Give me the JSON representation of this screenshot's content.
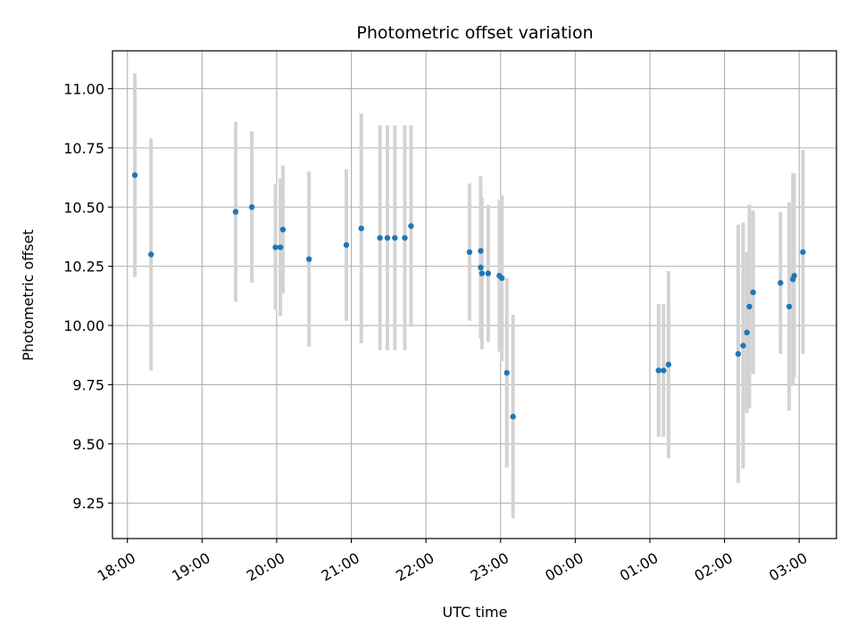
{
  "chart_data": {
    "type": "scatter",
    "title": "Photometric offset variation",
    "xlabel": "UTC time",
    "ylabel": "Photometric offset",
    "grid": true,
    "x_axis": {
      "unit": "UTC time of day",
      "range": [
        "17:48",
        "03:30"
      ],
      "ticks": [
        "18:00",
        "19:00",
        "20:00",
        "21:00",
        "22:00",
        "23:00",
        "00:00",
        "01:00",
        "02:00",
        "03:00"
      ]
    },
    "y_axis": {
      "range": [
        9.1,
        11.16
      ],
      "ticks": [
        "9.25",
        "9.50",
        "9.75",
        "10.00",
        "10.25",
        "10.50",
        "10.75",
        "11.00"
      ]
    },
    "colors": {
      "point": "#1f77b4",
      "errorbar": "#d3d3d3",
      "grid": "#b0b0b0"
    },
    "series": [
      {
        "points": [
          {
            "t": "18:06",
            "y": 10.635,
            "err": 0.43
          },
          {
            "t": "18:19",
            "y": 10.3,
            "err": 0.49
          },
          {
            "t": "19:27",
            "y": 10.48,
            "err": 0.38
          },
          {
            "t": "19:40",
            "y": 10.5,
            "err": 0.32
          },
          {
            "t": "19:59",
            "y": 10.33,
            "err": 0.265
          },
          {
            "t": "20:03",
            "y": 10.33,
            "err": 0.29
          },
          {
            "t": "20:05",
            "y": 10.405,
            "err": 0.27
          },
          {
            "t": "20:26",
            "y": 10.28,
            "err": 0.37
          },
          {
            "t": "20:56",
            "y": 10.34,
            "err": 0.32
          },
          {
            "t": "21:08",
            "y": 10.41,
            "err": 0.485
          },
          {
            "t": "21:23",
            "y": 10.37,
            "err": 0.475
          },
          {
            "t": "21:29",
            "y": 10.37,
            "err": 0.475
          },
          {
            "t": "21:35",
            "y": 10.37,
            "err": 0.475
          },
          {
            "t": "21:43",
            "y": 10.37,
            "err": 0.475
          },
          {
            "t": "21:48",
            "y": 10.42,
            "err": 0.425
          },
          {
            "t": "22:35",
            "y": 10.31,
            "err": 0.29
          },
          {
            "t": "22:44",
            "y": 10.315,
            "err": 0.315
          },
          {
            "t": "22:44",
            "y": 10.245,
            "err": 0.3
          },
          {
            "t": "22:45",
            "y": 10.22,
            "err": 0.32
          },
          {
            "t": "22:50",
            "y": 10.22,
            "err": 0.29
          },
          {
            "t": "22:59",
            "y": 10.21,
            "err": 0.32
          },
          {
            "t": "23:01",
            "y": 10.2,
            "err": 0.35
          },
          {
            "t": "23:05",
            "y": 9.8,
            "err": 0.4
          },
          {
            "t": "23:10",
            "y": 9.615,
            "err": 0.43
          },
          {
            "t": "01:07",
            "y": 9.81,
            "err": 0.28
          },
          {
            "t": "01:11",
            "y": 9.81,
            "err": 0.28
          },
          {
            "t": "01:15",
            "y": 9.835,
            "err": 0.395
          },
          {
            "t": "02:11",
            "y": 9.88,
            "err": 0.545
          },
          {
            "t": "02:15",
            "y": 9.915,
            "err": 0.52
          },
          {
            "t": "02:18",
            "y": 9.97,
            "err": 0.34
          },
          {
            "t": "02:20",
            "y": 10.08,
            "err": 0.43
          },
          {
            "t": "02:23",
            "y": 10.14,
            "err": 0.345
          },
          {
            "t": "02:45",
            "y": 10.18,
            "err": 0.3
          },
          {
            "t": "02:52",
            "y": 10.08,
            "err": 0.44
          },
          {
            "t": "02:55",
            "y": 10.195,
            "err": 0.45
          },
          {
            "t": "02:56",
            "y": 10.21,
            "err": 0.43
          },
          {
            "t": "03:03",
            "y": 10.31,
            "err": 0.43
          }
        ]
      }
    ]
  }
}
